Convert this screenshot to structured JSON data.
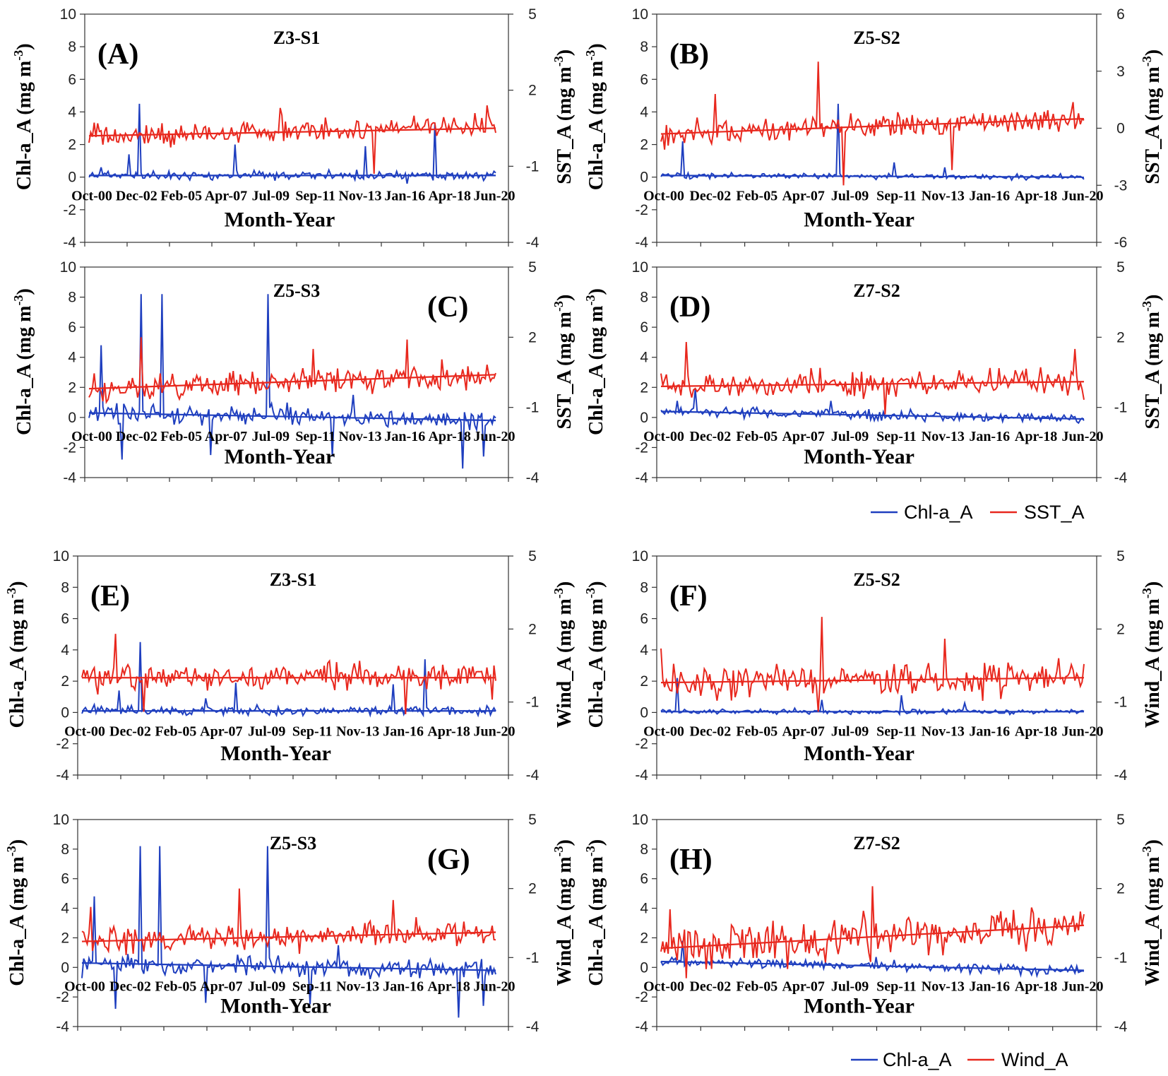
{
  "figure": {
    "legend_top": {
      "chl": "Chl-a_A",
      "other": "SST_A"
    },
    "legend_bottom": {
      "chl": "Chl-a_A",
      "other": "Wind_A"
    }
  },
  "colors": {
    "chl": "#1f3fbf",
    "other": "#e8281e"
  },
  "chart_data": [
    {
      "id": "A",
      "type": "line",
      "letter": "(A)",
      "title": "Z3-S1",
      "xlabel": "Month-Year",
      "ylabel_left": "Chl-a_A (mg m",
      "ylabel_right": "SST_A (mg m",
      "superscript": "-3",
      "ylabel_close": ")",
      "y_left_ticks": [
        "10",
        "8",
        "6",
        "4",
        "2",
        "0",
        "-2",
        "-4"
      ],
      "y_right_ticks": [
        "5",
        "2",
        "-1",
        "-4"
      ],
      "ylim_left": [
        -4,
        10
      ],
      "ylim_right": [
        -4,
        5
      ],
      "x_ticks": [
        "Oct-00",
        "Dec-02",
        "Feb-05",
        "Apr-07",
        "Jul-09",
        "Sep-11",
        "Nov-13",
        "Jan-16",
        "Apr-18",
        "Jun-20"
      ],
      "series": [
        {
          "name": "Chl-a_A",
          "axis": "left",
          "baseline": 0.1,
          "noise": 0.25,
          "trend": [
            0.0,
            0.0
          ],
          "seed": 11,
          "spikes": [
            [
              0.03,
              0.6
            ],
            [
              0.1,
              1.4
            ],
            [
              0.125,
              4.5
            ],
            [
              0.36,
              2.0
            ],
            [
              0.68,
              1.9
            ],
            [
              0.78,
              -0.4
            ],
            [
              0.85,
              3.3
            ]
          ]
        },
        {
          "name": "SST_A",
          "axis": "right",
          "baseline": 0.3,
          "noise": 0.45,
          "trend": [
            -0.1,
            0.2
          ],
          "seed": 12,
          "spikes": [
            [
              0.47,
              1.3
            ],
            [
              0.7,
              -1.3
            ],
            [
              0.98,
              1.4
            ]
          ]
        }
      ]
    },
    {
      "id": "B",
      "type": "line",
      "letter": "(B)",
      "title": "Z5-S2",
      "xlabel": "Month-Year",
      "ylabel_left": "Chl-a_A (mg m",
      "ylabel_right": "SST_A (mg m",
      "superscript": "-3",
      "ylabel_close": ")",
      "y_left_ticks": [
        "10",
        "8",
        "6",
        "4",
        "2",
        "0",
        "-2",
        "-4"
      ],
      "y_right_ticks": [
        "6",
        "3",
        "0",
        "-3",
        "-6"
      ],
      "ylim_left": [
        -4,
        10
      ],
      "ylim_right": [
        -6,
        6
      ],
      "x_ticks": [
        "Oct-00",
        "Dec-02",
        "Feb-05",
        "Apr-07",
        "Jul-09",
        "Sep-11",
        "Nov-13",
        "Jan-16",
        "Apr-18",
        "Jun-20"
      ],
      "series": [
        {
          "name": "Chl-a_A",
          "axis": "left",
          "baseline": 0.05,
          "noise": 0.15,
          "trend": [
            0.05,
            -0.05
          ],
          "seed": 21,
          "spikes": [
            [
              0.05,
              2.2
            ],
            [
              0.42,
              4.5
            ],
            [
              0.55,
              0.9
            ],
            [
              0.67,
              0.6
            ]
          ]
        },
        {
          "name": "SST_A",
          "axis": "right",
          "baseline": 0.0,
          "noise": 0.6,
          "trend": [
            -0.3,
            0.5
          ],
          "seed": 22,
          "spikes": [
            [
              0.13,
              1.8
            ],
            [
              0.37,
              3.5
            ],
            [
              0.43,
              -3.0
            ],
            [
              0.69,
              -2.2
            ]
          ]
        }
      ]
    },
    {
      "id": "C",
      "type": "line",
      "letter": "(C)",
      "title": "Z5-S3",
      "xlabel": "Month-Year",
      "ylabel_left": "Chl-a_A (mg m",
      "ylabel_right": "SST_A (mg m",
      "superscript": "-3",
      "ylabel_close": ")",
      "y_left_ticks": [
        "10",
        "8",
        "6",
        "4",
        "2",
        "0",
        "-2",
        "-4"
      ],
      "y_right_ticks": [
        "5",
        "2",
        "-1",
        "-4"
      ],
      "ylim_left": [
        -4,
        10
      ],
      "ylim_right": [
        -4,
        5
      ],
      "x_ticks": [
        "Oct-00",
        "Dec-02",
        "Feb-05",
        "Apr-07",
        "Jul-09",
        "Sep-11",
        "Nov-13",
        "Jan-16",
        "Apr-18",
        "Jun-20"
      ],
      "series": [
        {
          "name": "Chl-a_A",
          "axis": "left",
          "baseline": 0.0,
          "noise": 0.6,
          "trend": [
            0.3,
            -0.2
          ],
          "seed": 31,
          "spikes": [
            [
              0.03,
              4.8
            ],
            [
              0.08,
              -2.8
            ],
            [
              0.13,
              8.2
            ],
            [
              0.18,
              8.2
            ],
            [
              0.3,
              -2.5
            ],
            [
              0.44,
              8.2
            ],
            [
              0.6,
              -2.6
            ],
            [
              0.65,
              1.5
            ],
            [
              0.92,
              -3.4
            ],
            [
              0.97,
              -2.6
            ]
          ]
        },
        {
          "name": "SST_A",
          "axis": "right",
          "baseline": 0.1,
          "noise": 0.5,
          "trend": [
            -0.3,
            0.3
          ],
          "seed": 32,
          "spikes": [
            [
              0.13,
              2.0
            ],
            [
              0.55,
              1.5
            ],
            [
              0.78,
              1.9
            ]
          ]
        }
      ]
    },
    {
      "id": "D",
      "type": "line",
      "letter": "(D)",
      "title": "Z7-S2",
      "xlabel": "Month-Year",
      "ylabel_left": "Chl-a_A (mg m",
      "ylabel_right": "SST_A (mg m",
      "superscript": "-3",
      "ylabel_close": ")",
      "y_left_ticks": [
        "10",
        "8",
        "6",
        "4",
        "2",
        "0",
        "-2",
        "-4"
      ],
      "y_right_ticks": [
        "5",
        "2",
        "-1",
        "-4"
      ],
      "ylim_left": [
        -4,
        10
      ],
      "ylim_right": [
        -4,
        5
      ],
      "x_ticks": [
        "Oct-00",
        "Dec-02",
        "Feb-05",
        "Apr-07",
        "Jul-09",
        "Sep-11",
        "Nov-13",
        "Jan-16",
        "Apr-18",
        "Jun-20"
      ],
      "series": [
        {
          "name": "Chl-a_A",
          "axis": "left",
          "baseline": 0.1,
          "noise": 0.3,
          "trend": [
            0.3,
            -0.2
          ],
          "seed": 41,
          "spikes": [
            [
              0.04,
              1.1
            ],
            [
              0.08,
              1.9
            ],
            [
              0.4,
              1.1
            ]
          ]
        },
        {
          "name": "SST_A",
          "axis": "right",
          "baseline": 0.0,
          "noise": 0.55,
          "trend": [
            -0.1,
            0.1
          ],
          "seed": 42,
          "spikes": [
            [
              0.06,
              1.8
            ],
            [
              0.53,
              -1.3
            ],
            [
              0.98,
              1.5
            ]
          ]
        }
      ]
    },
    {
      "id": "E",
      "type": "line",
      "letter": "(E)",
      "title": "Z3-S1",
      "xlabel": "Month-Year",
      "ylabel_left": "Chl-a_A (mg m",
      "ylabel_right": "Wind_A (mg m",
      "superscript": "-3",
      "ylabel_close": ")",
      "y_left_ticks": [
        "10",
        "8",
        "6",
        "4",
        "2",
        "0",
        "-2",
        "-4"
      ],
      "y_right_ticks": [
        "5",
        "2",
        "-1",
        "-4"
      ],
      "ylim_left": [
        -4,
        10
      ],
      "ylim_right": [
        -4,
        5
      ],
      "x_ticks": [
        "Oct-00",
        "Dec-02",
        "Feb-05",
        "Apr-07",
        "Jul-09",
        "Sep-11",
        "Nov-13",
        "Jan-16",
        "Apr-18",
        "Jun-20"
      ],
      "series": [
        {
          "name": "Chl-a_A",
          "axis": "left",
          "baseline": 0.1,
          "noise": 0.25,
          "trend": [
            0.0,
            0.0
          ],
          "seed": 51,
          "spikes": [
            [
              0.03,
              0.5
            ],
            [
              0.09,
              1.4
            ],
            [
              0.14,
              4.5
            ],
            [
              0.3,
              0.9
            ],
            [
              0.37,
              1.9
            ],
            [
              0.75,
              1.8
            ],
            [
              0.83,
              3.4
            ]
          ]
        },
        {
          "name": "Wind_A",
          "axis": "right",
          "baseline": 0.0,
          "noise": 0.55,
          "trend": [
            0.0,
            0.0
          ],
          "seed": 52,
          "spikes": [
            [
              0.08,
              1.8
            ],
            [
              0.15,
              -1.4
            ],
            [
              0.78,
              -1.5
            ],
            [
              0.99,
              -0.9
            ]
          ]
        }
      ]
    },
    {
      "id": "F",
      "type": "line",
      "letter": "(F)",
      "title": "Z5-S2",
      "xlabel": "Month-Year",
      "ylabel_left": "Chl-a_A (mg m",
      "ylabel_right": "Wind_A (mg m",
      "superscript": "-3",
      "ylabel_close": ")",
      "y_left_ticks": [
        "10",
        "8",
        "6",
        "4",
        "2",
        "0",
        "-2",
        "-4"
      ],
      "y_right_ticks": [
        "5",
        "2",
        "-1",
        "-4"
      ],
      "ylim_left": [
        -4,
        10
      ],
      "ylim_right": [
        -4,
        5
      ],
      "x_ticks": [
        "Oct-00",
        "Dec-02",
        "Feb-05",
        "Apr-07",
        "Jul-09",
        "Sep-11",
        "Nov-13",
        "Jan-16",
        "Apr-18",
        "Jun-20"
      ],
      "series": [
        {
          "name": "Chl-a_A",
          "axis": "left",
          "baseline": 0.05,
          "noise": 0.15,
          "trend": [
            0.0,
            0.0
          ],
          "seed": 61,
          "spikes": [
            [
              0.04,
              2.2
            ],
            [
              0.38,
              0.8
            ],
            [
              0.57,
              1.1
            ],
            [
              0.72,
              0.6
            ]
          ]
        },
        {
          "name": "Wind_A",
          "axis": "right",
          "baseline": -0.1,
          "noise": 0.6,
          "trend": [
            -0.1,
            0.1
          ],
          "seed": 62,
          "spikes": [
            [
              0.0,
              1.2
            ],
            [
              0.38,
              2.5
            ],
            [
              0.37,
              -1.4
            ],
            [
              0.67,
              1.6
            ]
          ]
        }
      ]
    },
    {
      "id": "G",
      "type": "line",
      "letter": "(G)",
      "title": "Z5-S3",
      "xlabel": "Month-Year",
      "ylabel_left": "Chl-a_A (mg m",
      "ylabel_right": "Wind_A (mg m",
      "superscript": "-3",
      "ylabel_close": ")",
      "y_left_ticks": [
        "10",
        "8",
        "6",
        "4",
        "2",
        "0",
        "-2",
        "-4"
      ],
      "y_right_ticks": [
        "5",
        "2",
        "-1",
        "-4"
      ],
      "ylim_left": [
        -4,
        10
      ],
      "ylim_right": [
        -4,
        5
      ],
      "x_ticks": [
        "Oct-00",
        "Dec-02",
        "Feb-05",
        "Apr-07",
        "Jul-09",
        "Sep-11",
        "Nov-13",
        "Jan-16",
        "Apr-18",
        "Jun-20"
      ],
      "series": [
        {
          "name": "Chl-a_A",
          "axis": "left",
          "baseline": 0.0,
          "noise": 0.6,
          "trend": [
            0.3,
            -0.2
          ],
          "seed": 71,
          "spikes": [
            [
              0.03,
              4.8
            ],
            [
              0.08,
              -2.8
            ],
            [
              0.14,
              8.2
            ],
            [
              0.19,
              8.2
            ],
            [
              0.3,
              -2.4
            ],
            [
              0.45,
              8.2
            ],
            [
              0.55,
              -2.5
            ],
            [
              0.62,
              1.5
            ],
            [
              0.91,
              -3.4
            ],
            [
              0.97,
              -2.6
            ]
          ]
        },
        {
          "name": "Wind_A",
          "axis": "right",
          "baseline": 0.0,
          "noise": 0.55,
          "trend": [
            -0.3,
            0.1
          ],
          "seed": 72,
          "spikes": [
            [
              0.02,
              1.2
            ],
            [
              0.38,
              2.0
            ],
            [
              0.75,
              1.5
            ]
          ]
        }
      ]
    },
    {
      "id": "H",
      "type": "line",
      "letter": "(H)",
      "title": "Z7-S2",
      "xlabel": "Month-Year",
      "ylabel_left": "Chl-a_A (mg m",
      "ylabel_right": "Wind_A (mg m",
      "superscript": "-3",
      "ylabel_close": ")",
      "y_left_ticks": [
        "10",
        "8",
        "6",
        "4",
        "2",
        "0",
        "-2",
        "-4"
      ],
      "y_right_ticks": [
        "5",
        "2",
        "-1",
        "-4"
      ],
      "ylim_left": [
        -4,
        10
      ],
      "ylim_right": [
        -4,
        5
      ],
      "x_ticks": [
        "Oct-00",
        "Dec-02",
        "Feb-05",
        "Apr-07",
        "Jul-09",
        "Sep-11",
        "Nov-13",
        "Jan-16",
        "Apr-18",
        "Jun-20"
      ],
      "series": [
        {
          "name": "Chl-a_A",
          "axis": "left",
          "baseline": 0.1,
          "noise": 0.3,
          "trend": [
            0.3,
            -0.3
          ],
          "seed": 81,
          "spikes": [
            [
              0.05,
              1.8
            ],
            [
              0.51,
              0.7
            ],
            [
              0.55,
              0.5
            ]
          ]
        },
        {
          "name": "Wind_A",
          "axis": "right",
          "baseline": 0.0,
          "noise": 0.85,
          "trend": [
            -0.6,
            0.4
          ],
          "seed": 82,
          "spikes": [
            [
              0.06,
              -1.9
            ],
            [
              0.5,
              2.1
            ],
            [
              0.3,
              -1.5
            ],
            [
              0.02,
              1.1
            ]
          ]
        }
      ]
    }
  ]
}
